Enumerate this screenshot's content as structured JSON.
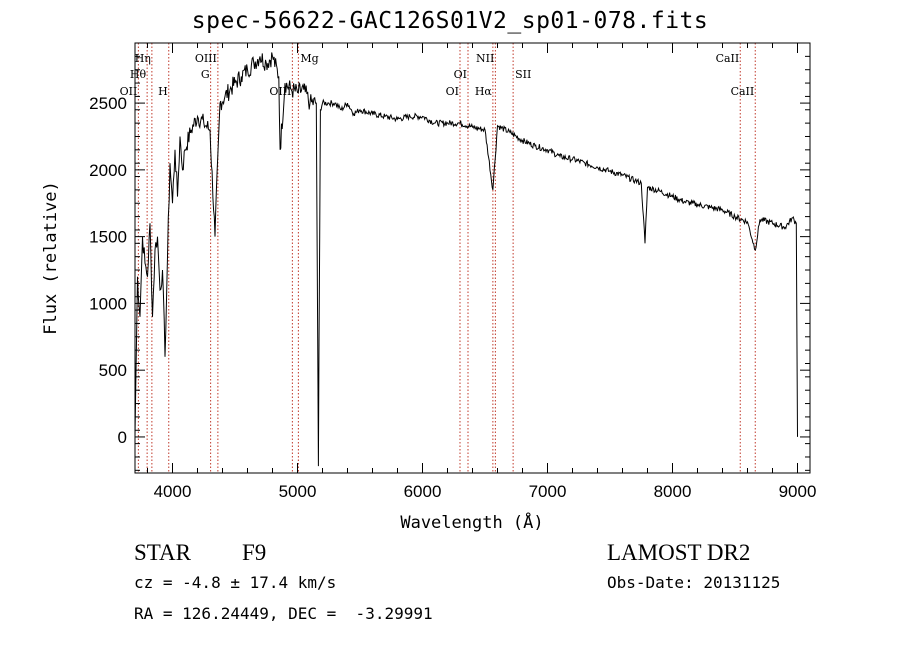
{
  "chart_data": {
    "type": "line",
    "title": "spec-56622-GAC126S01V2_sp01-078.fits",
    "xlabel": "Wavelength (Å)",
    "ylabel": "Flux (relative)",
    "xlim": [
      3700,
      9100
    ],
    "ylim": [
      -270,
      2950
    ],
    "xticks": [
      "4000",
      "5000",
      "6000",
      "7000",
      "8000",
      "9000"
    ],
    "yticks": [
      "0",
      "500",
      "1000",
      "1500",
      "2000",
      "2500"
    ],
    "series": [
      {
        "x": [
          3700,
          3720,
          3740,
          3760,
          3780,
          3800,
          3820,
          3840,
          3860,
          3880,
          3900,
          3920,
          3940,
          3960,
          3980,
          4000,
          4020,
          4040,
          4060,
          4080,
          4100,
          4150,
          4200,
          4250,
          4300,
          4340,
          4380,
          4420,
          4460,
          4500,
          4550,
          4600,
          4650,
          4700,
          4750,
          4800,
          4850,
          4861,
          4900,
          4950,
          5000,
          5050,
          5100,
          5150,
          5167,
          5183,
          5200,
          5250,
          5300,
          5350,
          5400,
          5450,
          5500,
          5600,
          5700,
          5800,
          5900,
          6000,
          6100,
          6200,
          6300,
          6400,
          6500,
          6563,
          6600,
          6700,
          6800,
          6900,
          7000,
          7100,
          7200,
          7300,
          7400,
          7500,
          7600,
          7700,
          7750,
          7780,
          7800,
          7900,
          8000,
          8100,
          8200,
          8300,
          8400,
          8500,
          8600,
          8662,
          8700,
          8800,
          8900,
          8960,
          8990,
          9000
        ],
        "y": [
          0,
          1200,
          900,
          1500,
          1300,
          1200,
          1600,
          900,
          1400,
          1500,
          1100,
          1250,
          600,
          1350,
          2050,
          1750,
          2150,
          1800,
          2250,
          2000,
          2150,
          2300,
          2400,
          2350,
          2300,
          1500,
          2500,
          2550,
          2600,
          2650,
          2700,
          2750,
          2800,
          2850,
          2800,
          2850,
          2700,
          2150,
          2650,
          2600,
          2580,
          2600,
          2500,
          2500,
          -220,
          2450,
          2500,
          2500,
          2500,
          2450,
          2500,
          2420,
          2450,
          2420,
          2400,
          2380,
          2400,
          2400,
          2350,
          2350,
          2350,
          2320,
          2300,
          1850,
          2330,
          2280,
          2220,
          2180,
          2150,
          2100,
          2080,
          2050,
          2020,
          1990,
          1960,
          1920,
          1900,
          1450,
          1870,
          1840,
          1800,
          1760,
          1740,
          1720,
          1700,
          1650,
          1610,
          1400,
          1630,
          1600,
          1570,
          1640,
          1600,
          0
        ]
      }
    ],
    "lines": [
      {
        "label": "OII",
        "x": 3727,
        "tier": 3,
        "side": "left"
      },
      {
        "label": "Hθ",
        "x": 3797,
        "tier": 2,
        "side": "left"
      },
      {
        "label": "Hη",
        "x": 3835,
        "tier": 1,
        "side": "left"
      },
      {
        "label": "H",
        "x": 3970,
        "tier": 3,
        "side": "left"
      },
      {
        "label": "G",
        "x": 4305,
        "tier": 2,
        "side": "left"
      },
      {
        "label": "OIII",
        "x": 4363,
        "tier": 1,
        "side": "left"
      },
      {
        "label": "OIII",
        "x": 4959,
        "tier": 3,
        "side": "left"
      },
      {
        "label": "Mg",
        "x": 5007,
        "tier": 1,
        "side": "right"
      },
      {
        "label": "OI",
        "x": 6300,
        "tier": 3,
        "side": "left"
      },
      {
        "label": "OI",
        "x": 6364,
        "tier": 2,
        "side": "left"
      },
      {
        "label": "Hα",
        "x": 6563,
        "tier": 3,
        "side": "left"
      },
      {
        "label": "NII",
        "x": 6583,
        "tier": 1,
        "side": "left"
      },
      {
        "label": "SII",
        "x": 6725,
        "tier": 2,
        "side": "right"
      },
      {
        "label": "CaII",
        "x": 8542,
        "tier": 1,
        "side": "left"
      },
      {
        "label": "CaII",
        "x": 8662,
        "tier": 3,
        "side": "left"
      }
    ],
    "grid": false,
    "colors": {
      "line": "#000000",
      "marker": "#c0392b"
    }
  },
  "info": {
    "type_label": "STAR",
    "subclass": "F9",
    "survey": "LAMOST DR2",
    "cz": "cz = -4.8 ± 17.4 km/s",
    "obs_date": "Obs-Date: 20131125",
    "coords": "RA = 126.24449, DEC =  -3.29991"
  }
}
